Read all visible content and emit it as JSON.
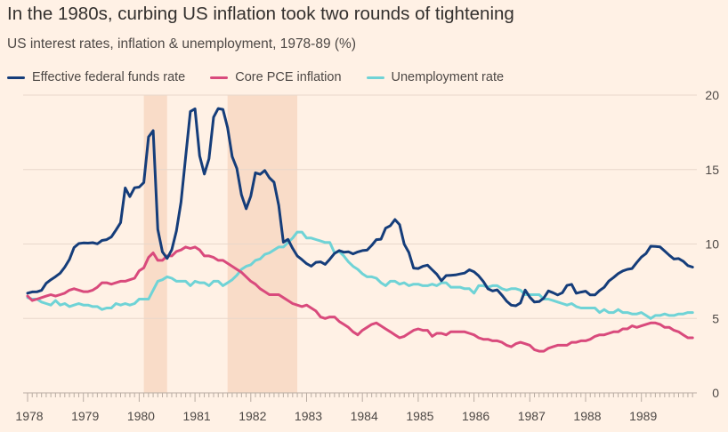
{
  "chart_data": {
    "type": "line",
    "title": "In the 1980s, curbing US inflation took two rounds of tightening",
    "subtitle": "US interest rates, inflation & unemployment, 1978-89 (%)",
    "x_start": "1978-01",
    "x_frequency": "monthly",
    "x_ticks": [
      "1978",
      "1979",
      "1980",
      "1981",
      "1982",
      "1983",
      "1984",
      "1985",
      "1986",
      "1987",
      "1988",
      "1989"
    ],
    "ylim": [
      0,
      20
    ],
    "y_ticks": [
      "0",
      "5",
      "10",
      "15",
      "20"
    ],
    "y_axis_side": "right",
    "grid": true,
    "legend_position": "top",
    "shaded_periods": [
      {
        "start": "1980-02",
        "end": "1980-07"
      },
      {
        "start": "1981-08",
        "end": "1982-11"
      }
    ],
    "shade_color": "#f9dcc8",
    "series": [
      {
        "name": "Effective federal funds rate",
        "color": "#153d7a",
        "values": [
          6.7,
          6.78,
          6.79,
          6.89,
          7.36,
          7.6,
          7.81,
          8.04,
          8.45,
          8.96,
          9.76,
          10.03,
          10.07,
          10.06,
          10.09,
          10.01,
          10.24,
          10.29,
          10.47,
          10.94,
          11.43,
          13.77,
          13.18,
          13.78,
          13.82,
          14.13,
          17.19,
          17.61,
          10.98,
          9.47,
          9.03,
          9.61,
          10.87,
          12.81,
          15.85,
          18.9,
          19.08,
          15.93,
          14.7,
          15.72,
          18.52,
          19.1,
          19.04,
          17.82,
          15.87,
          15.08,
          13.31,
          12.37,
          13.22,
          14.78,
          14.68,
          14.94,
          14.45,
          14.15,
          12.59,
          10.12,
          10.31,
          9.71,
          9.2,
          8.95,
          8.68,
          8.51,
          8.77,
          8.8,
          8.63,
          8.98,
          9.37,
          9.56,
          9.45,
          9.48,
          9.34,
          9.47,
          9.56,
          9.59,
          9.91,
          10.29,
          10.32,
          11.06,
          11.23,
          11.64,
          11.3,
          9.99,
          9.43,
          8.38,
          8.35,
          8.5,
          8.58,
          8.27,
          7.97,
          7.53,
          7.88,
          7.9,
          7.92,
          7.99,
          8.05,
          8.27,
          8.14,
          7.86,
          7.48,
          6.99,
          6.85,
          6.92,
          6.56,
          6.17,
          5.89,
          5.85,
          6.04,
          6.91,
          6.43,
          6.1,
          6.13,
          6.37,
          6.85,
          6.73,
          6.58,
          6.73,
          7.22,
          7.29,
          6.69,
          6.77,
          6.83,
          6.58,
          6.58,
          6.87,
          7.09,
          7.51,
          7.75,
          8.01,
          8.19,
          8.3,
          8.35,
          8.76,
          9.12,
          9.36,
          9.85,
          9.84,
          9.81,
          9.53,
          9.24,
          8.99,
          9.02,
          8.84,
          8.55,
          8.45
        ]
      },
      {
        "name": "Core PCE inflation",
        "color": "#d94a7c",
        "values": [
          6.5,
          6.2,
          6.3,
          6.4,
          6.5,
          6.6,
          6.5,
          6.6,
          6.7,
          6.9,
          7.0,
          6.9,
          6.8,
          6.8,
          6.9,
          7.1,
          7.4,
          7.4,
          7.3,
          7.4,
          7.5,
          7.5,
          7.6,
          7.7,
          8.2,
          8.4,
          9.1,
          9.4,
          8.9,
          8.9,
          9.2,
          9.2,
          9.5,
          9.6,
          9.8,
          9.7,
          9.8,
          9.6,
          9.2,
          9.2,
          9.1,
          8.9,
          8.9,
          8.7,
          8.5,
          8.3,
          8.1,
          7.8,
          7.5,
          7.3,
          7.0,
          6.8,
          6.6,
          6.6,
          6.6,
          6.4,
          6.2,
          6.0,
          5.9,
          5.8,
          5.9,
          5.7,
          5.5,
          5.1,
          5.0,
          5.1,
          5.1,
          4.8,
          4.6,
          4.4,
          4.1,
          3.9,
          4.2,
          4.4,
          4.6,
          4.7,
          4.5,
          4.3,
          4.1,
          3.9,
          3.7,
          3.8,
          4.0,
          4.2,
          4.3,
          4.2,
          4.2,
          3.8,
          4.0,
          4.0,
          3.9,
          4.1,
          4.1,
          4.1,
          4.1,
          4.0,
          3.9,
          3.7,
          3.6,
          3.6,
          3.5,
          3.5,
          3.4,
          3.2,
          3.1,
          3.3,
          3.4,
          3.3,
          3.2,
          2.9,
          2.8,
          2.8,
          3.0,
          3.1,
          3.2,
          3.2,
          3.2,
          3.4,
          3.4,
          3.5,
          3.5,
          3.6,
          3.8,
          3.9,
          3.9,
          4.0,
          4.1,
          4.1,
          4.3,
          4.3,
          4.5,
          4.4,
          4.5,
          4.6,
          4.7,
          4.7,
          4.6,
          4.4,
          4.4,
          4.2,
          4.1,
          3.9,
          3.7,
          3.7
        ]
      },
      {
        "name": "Unemployment rate",
        "color": "#6fd3d6",
        "values": [
          6.4,
          6.3,
          6.3,
          6.1,
          6.0,
          5.9,
          6.2,
          5.9,
          6.0,
          5.8,
          5.9,
          6.0,
          5.9,
          5.9,
          5.8,
          5.8,
          5.6,
          5.7,
          5.7,
          6.0,
          5.9,
          6.0,
          5.9,
          6.0,
          6.3,
          6.3,
          6.3,
          6.9,
          7.5,
          7.6,
          7.8,
          7.7,
          7.5,
          7.5,
          7.5,
          7.2,
          7.5,
          7.4,
          7.4,
          7.2,
          7.5,
          7.5,
          7.2,
          7.4,
          7.6,
          7.9,
          8.3,
          8.5,
          8.6,
          8.9,
          9.0,
          9.3,
          9.4,
          9.6,
          9.8,
          9.8,
          10.1,
          10.4,
          10.8,
          10.8,
          10.4,
          10.4,
          10.3,
          10.2,
          10.1,
          10.1,
          9.4,
          9.5,
          9.2,
          8.8,
          8.5,
          8.3,
          8.0,
          7.8,
          7.8,
          7.7,
          7.4,
          7.2,
          7.5,
          7.5,
          7.3,
          7.4,
          7.2,
          7.3,
          7.3,
          7.2,
          7.2,
          7.3,
          7.2,
          7.4,
          7.4,
          7.1,
          7.1,
          7.1,
          7.0,
          7.0,
          6.7,
          7.2,
          7.2,
          7.1,
          7.2,
          7.2,
          7.0,
          6.9,
          7.0,
          7.0,
          6.9,
          6.6,
          6.6,
          6.6,
          6.6,
          6.3,
          6.3,
          6.2,
          6.1,
          6.0,
          5.9,
          6.0,
          5.8,
          5.7,
          5.7,
          5.7,
          5.7,
          5.4,
          5.6,
          5.4,
          5.4,
          5.6,
          5.4,
          5.4,
          5.3,
          5.3,
          5.4,
          5.2,
          5.0,
          5.2,
          5.2,
          5.3,
          5.2,
          5.2,
          5.3,
          5.3,
          5.4,
          5.4
        ]
      }
    ]
  }
}
